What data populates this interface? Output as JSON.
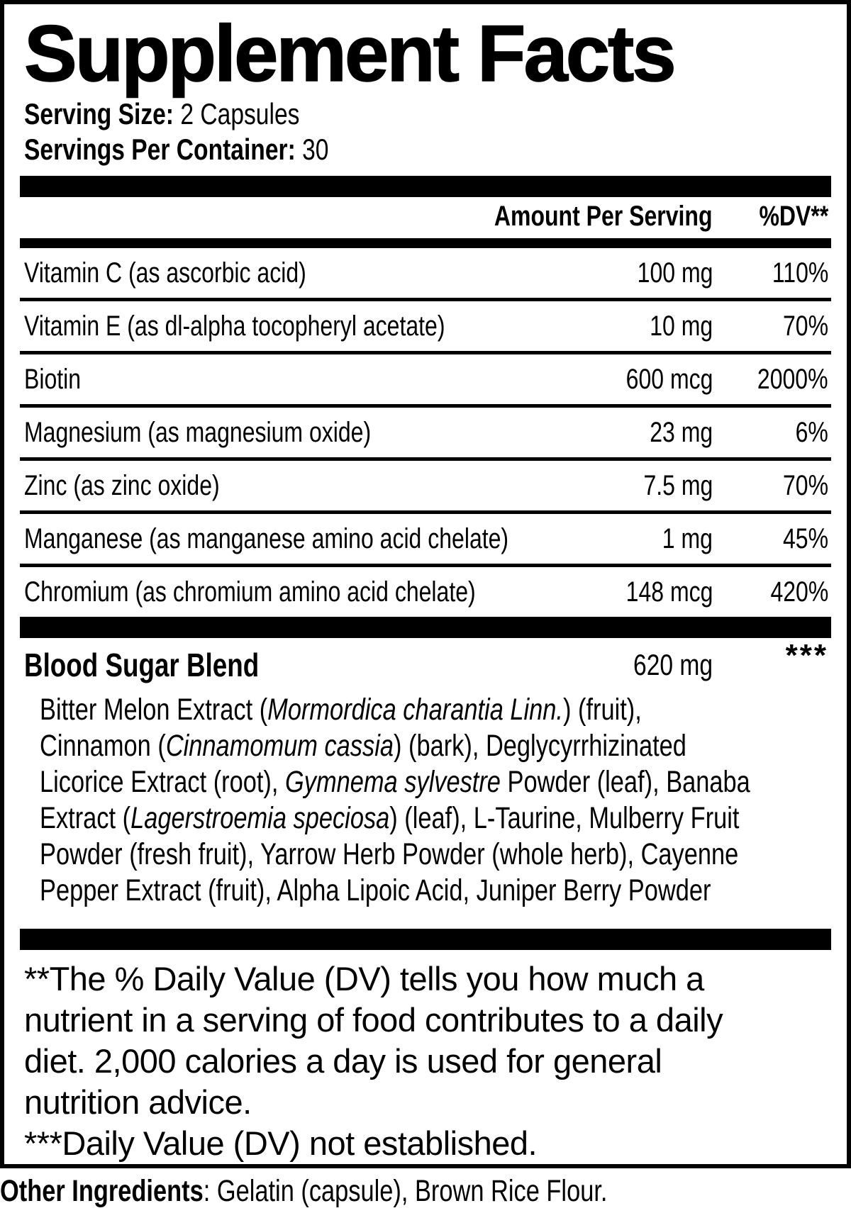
{
  "header": {
    "title": "Supplement Facts",
    "serving_size_label": "Serving Size:",
    "serving_size_value": " 2 Capsules",
    "servings_per_container_label": "Servings Per Container:",
    "servings_per_container_value": " 30"
  },
  "table": {
    "amount_header": "Amount Per Serving",
    "dv_header": "%DV**",
    "rows": [
      {
        "name": "Vitamin C (as ascorbic acid)",
        "amount": "100 mg",
        "dv": "110%"
      },
      {
        "name": "Vitamin E (as dl-alpha tocopheryl acetate)",
        "amount": "10 mg",
        "dv": "70%"
      },
      {
        "name": "Biotin",
        "amount": "600 mcg",
        "dv": "2000%"
      },
      {
        "name": "Magnesium (as magnesium oxide)",
        "amount": "23 mg",
        "dv": "6%"
      },
      {
        "name": "Zinc (as zinc oxide)",
        "amount": "7.5 mg",
        "dv": "70%"
      },
      {
        "name": "Manganese (as manganese amino acid chelate)",
        "amount": "1 mg",
        "dv": "45%"
      },
      {
        "name": "Chromium (as chromium amino acid chelate)",
        "amount": "148 mcg",
        "dv": "420%"
      }
    ]
  },
  "blend": {
    "name": "Blood Sugar Blend",
    "amount": "620 mg",
    "dv": "***",
    "lines": [
      [
        {
          "t": "Bitter Melon Extract (",
          "i": false
        },
        {
          "t": "Mormordica charantia Linn.",
          "i": true
        },
        {
          "t": ") (fruit),",
          "i": false
        }
      ],
      [
        {
          "t": "Cinnamon (",
          "i": false
        },
        {
          "t": "Cinnamomum cassia",
          "i": true
        },
        {
          "t": ") (bark), Deglycyrrhizinated",
          "i": false
        }
      ],
      [
        {
          "t": "Licorice Extract (root), ",
          "i": false
        },
        {
          "t": "Gymnema sylvestre",
          "i": true
        },
        {
          "t": " Powder (leaf), Banaba",
          "i": false
        }
      ],
      [
        {
          "t": "Extract (",
          "i": false
        },
        {
          "t": "Lagerstroemia speciosa",
          "i": true
        },
        {
          "t": ") (leaf), L-Taurine, Mulberry Fruit",
          "i": false
        }
      ],
      [
        {
          "t": "Powder (fresh fruit), Yarrow Herb Powder (whole herb), Cayenne",
          "i": false
        }
      ],
      [
        {
          "t": "Pepper Extract (fruit), Alpha Lipoic Acid, Juniper Berry Powder",
          "i": false
        }
      ]
    ]
  },
  "footnotes": {
    "dv_explanation_lines": [
      "**The % Daily Value (DV) tells you how much a",
      "nutrient in a serving of food contributes to a daily",
      "diet. 2,000 calories a day is used for general",
      "nutrition advice."
    ],
    "dv_not_established": "***Daily Value (DV) not established."
  },
  "other_ingredients": {
    "label": "Other Ingredients",
    "value": ": Gelatin (capsule), Brown Rice Flour."
  },
  "colors": {
    "text": "#000000",
    "background": "#ffffff"
  }
}
